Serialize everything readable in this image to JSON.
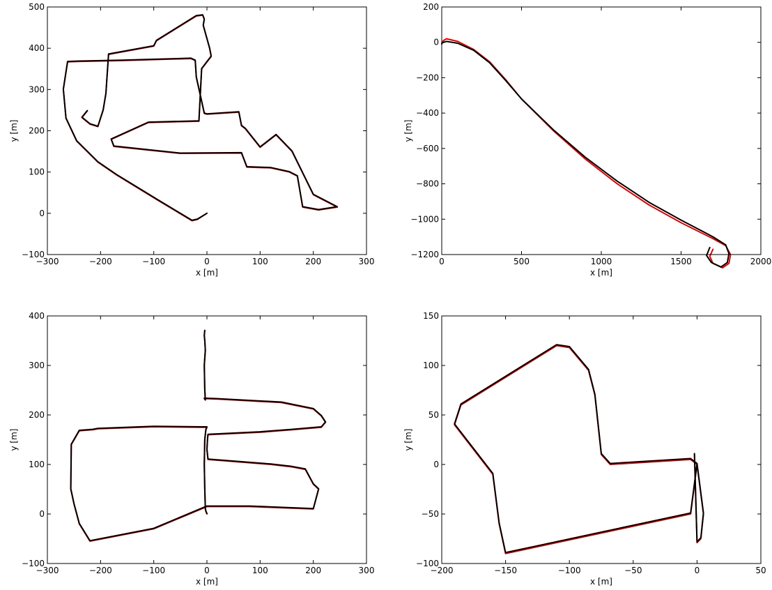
{
  "chart_data": [
    {
      "type": "line",
      "xlabel": "x [m]",
      "ylabel": "y [m]",
      "xlim": [
        -300,
        300
      ],
      "ylim": [
        -100,
        500
      ],
      "xticks": [
        -300,
        -200,
        -100,
        0,
        100,
        200,
        300
      ],
      "yticks": [
        -100,
        0,
        100,
        200,
        300,
        400,
        500
      ],
      "grid": false,
      "series": [
        {
          "color": "#e00000",
          "x": [
            0,
            -18,
            -28,
            -90,
            -170,
            -205,
            -245,
            -265,
            -270,
            -262,
            -240,
            -160,
            -30,
            -22,
            -20,
            -5,
            0,
            60,
            65,
            72,
            100,
            130,
            160,
            200,
            245,
            210,
            180,
            170,
            155,
            120,
            75,
            65,
            -50,
            -175,
            -180,
            -110,
            -15,
            -10,
            8,
            5,
            -7,
            -5,
            -8,
            -20,
            -95,
            -100,
            -185,
            -190,
            -195,
            -200,
            -205,
            -220,
            -235,
            -225
          ],
          "y": [
            0,
            -15,
            -18,
            30,
            93,
            124,
            175,
            230,
            300,
            367,
            368,
            370,
            375,
            370,
            330,
            242,
            240,
            245,
            212,
            205,
            160,
            190,
            150,
            45,
            15,
            8,
            15,
            90,
            100,
            110,
            112,
            146,
            145,
            162,
            179,
            220,
            223,
            350,
            380,
            400,
            455,
            470,
            480,
            478,
            418,
            405,
            385,
            290,
            250,
            230,
            210,
            216,
            232,
            248
          ]
        },
        {
          "color": "#000000",
          "x": [
            0,
            -18,
            -28,
            -90,
            -170,
            -205,
            -245,
            -265,
            -270,
            -262,
            -240,
            -160,
            -30,
            -22,
            -20,
            -5,
            0,
            60,
            65,
            72,
            100,
            130,
            160,
            200,
            245,
            210,
            180,
            170,
            155,
            120,
            75,
            65,
            -50,
            -175,
            -180,
            -110,
            -15,
            -10,
            8,
            5,
            -7,
            -5,
            -8,
            -20,
            -95,
            -100,
            -185,
            -190,
            -195,
            -200,
            -205,
            -220,
            -235,
            -225
          ],
          "y": [
            0,
            -14,
            -17,
            31,
            94,
            125,
            176,
            231,
            301,
            368,
            369,
            371,
            376,
            371,
            331,
            243,
            241,
            246,
            213,
            206,
            161,
            191,
            151,
            46,
            16,
            9,
            16,
            91,
            101,
            111,
            113,
            147,
            146,
            163,
            180,
            221,
            224,
            351,
            381,
            401,
            456,
            471,
            481,
            479,
            419,
            406,
            386,
            291,
            251,
            231,
            211,
            217,
            233,
            249
          ]
        }
      ]
    },
    {
      "type": "line",
      "xlabel": "x [m]",
      "ylabel": "y [m]",
      "xlim": [
        0,
        2000
      ],
      "ylim": [
        -1200,
        200
      ],
      "xticks": [
        0,
        500,
        1000,
        1500,
        2000
      ],
      "yticks": [
        -1200,
        -1000,
        -800,
        -600,
        -400,
        -200,
        0,
        200
      ],
      "grid": false,
      "series": [
        {
          "color": "#e00000",
          "x": [
            0,
            10,
            30,
            100,
            200,
            300,
            400,
            500,
            700,
            900,
            1100,
            1300,
            1500,
            1700,
            1780,
            1810,
            1800,
            1760,
            1700,
            1680,
            1700
          ],
          "y": [
            -10,
            10,
            20,
            5,
            -40,
            -110,
            -210,
            -320,
            -500,
            -660,
            -800,
            -920,
            -1020,
            -1110,
            -1150,
            -1200,
            -1250,
            -1275,
            -1250,
            -1210,
            -1170
          ]
        },
        {
          "color": "#000000",
          "x": [
            0,
            10,
            30,
            100,
            200,
            300,
            400,
            500,
            700,
            900,
            1100,
            1300,
            1500,
            1700,
            1780,
            1800,
            1790,
            1750,
            1690,
            1660,
            1680
          ],
          "y": [
            -5,
            0,
            5,
            -5,
            -45,
            -115,
            -215,
            -320,
            -495,
            -650,
            -785,
            -905,
            -1005,
            -1100,
            -1145,
            -1195,
            -1245,
            -1270,
            -1245,
            -1205,
            -1160
          ]
        }
      ]
    },
    {
      "type": "line",
      "xlabel": "x [m]",
      "ylabel": "y [m]",
      "xlim": [
        -300,
        300
      ],
      "ylim": [
        -100,
        400
      ],
      "xticks": [
        -300,
        -200,
        -100,
        0,
        100,
        200,
        300
      ],
      "yticks": [
        -100,
        0,
        100,
        200,
        300,
        400
      ],
      "grid": false,
      "series": [
        {
          "color": "#e00000",
          "x": [
            0,
            -2,
            -3,
            -4,
            -5,
            -4,
            -2,
            0,
            -10,
            -100,
            -205,
            -215,
            -240,
            -255,
            -256,
            -250,
            -245,
            -240,
            -220,
            -100,
            0,
            80,
            200,
            210,
            200,
            185,
            160,
            120,
            2,
            0,
            1,
            2,
            100,
            160,
            215,
            223,
            215,
            200,
            140,
            20,
            -5,
            -3,
            -4,
            -5,
            -3,
            -4,
            -5,
            -4
          ],
          "y": [
            0,
            5,
            10,
            50,
            100,
            150,
            170,
            175,
            175,
            176,
            172,
            170,
            168,
            140,
            50,
            20,
            0,
            -20,
            -55,
            -30,
            15,
            15,
            10,
            50,
            60,
            90,
            95,
            100,
            110,
            130,
            150,
            160,
            165,
            170,
            175,
            185,
            198,
            212,
            225,
            232,
            233,
            230,
            250,
            300,
            330,
            350,
            360,
            370
          ]
        },
        {
          "color": "#000000",
          "x": [
            0,
            -2,
            -3,
            -4,
            -5,
            -4,
            -2,
            0,
            -10,
            -100,
            -205,
            -215,
            -240,
            -255,
            -256,
            -250,
            -245,
            -240,
            -220,
            -100,
            0,
            80,
            200,
            210,
            200,
            185,
            160,
            120,
            2,
            0,
            1,
            2,
            100,
            160,
            215,
            223,
            215,
            200,
            140,
            20,
            -5,
            -3,
            -4,
            -5,
            -3,
            -4,
            -5,
            -4
          ],
          "y": [
            1,
            6,
            11,
            51,
            101,
            151,
            171,
            176,
            176,
            177,
            173,
            171,
            169,
            141,
            51,
            21,
            1,
            -19,
            -54,
            -29,
            16,
            16,
            11,
            51,
            61,
            91,
            96,
            101,
            111,
            131,
            151,
            161,
            166,
            171,
            176,
            186,
            199,
            213,
            226,
            233,
            234,
            231,
            251,
            301,
            331,
            351,
            361,
            371
          ]
        }
      ]
    },
    {
      "type": "line",
      "xlabel": "x [m]",
      "ylabel": "y [m]",
      "xlim": [
        -200,
        50
      ],
      "ylim": [
        -100,
        150
      ],
      "xticks": [
        -200,
        -150,
        -100,
        -50,
        0,
        50
      ],
      "yticks": [
        -100,
        -50,
        0,
        50,
        100,
        150
      ],
      "grid": false,
      "series": [
        {
          "color": "#e00000",
          "x": [
            0,
            -2,
            -5,
            -150,
            -155,
            -160,
            -190,
            -185,
            -110,
            -100,
            -85,
            -80,
            -75,
            -68,
            -5,
            0,
            5,
            3,
            0,
            -2
          ],
          "y": [
            0,
            -20,
            -50,
            -90,
            -60,
            -10,
            40,
            60,
            120,
            118,
            95,
            70,
            10,
            0,
            5,
            0,
            -50,
            -75,
            -79,
            10
          ]
        },
        {
          "color": "#000000",
          "x": [
            0,
            -2,
            -5,
            -150,
            -155,
            -160,
            -190,
            -185,
            -110,
            -100,
            -85,
            -80,
            -75,
            -68,
            -5,
            0,
            5,
            3,
            0,
            -2
          ],
          "y": [
            1,
            -19,
            -49,
            -89,
            -59,
            -9,
            41,
            61,
            121,
            119,
            96,
            71,
            11,
            1,
            6,
            1,
            -49,
            -74,
            -78,
            11
          ]
        }
      ]
    }
  ]
}
